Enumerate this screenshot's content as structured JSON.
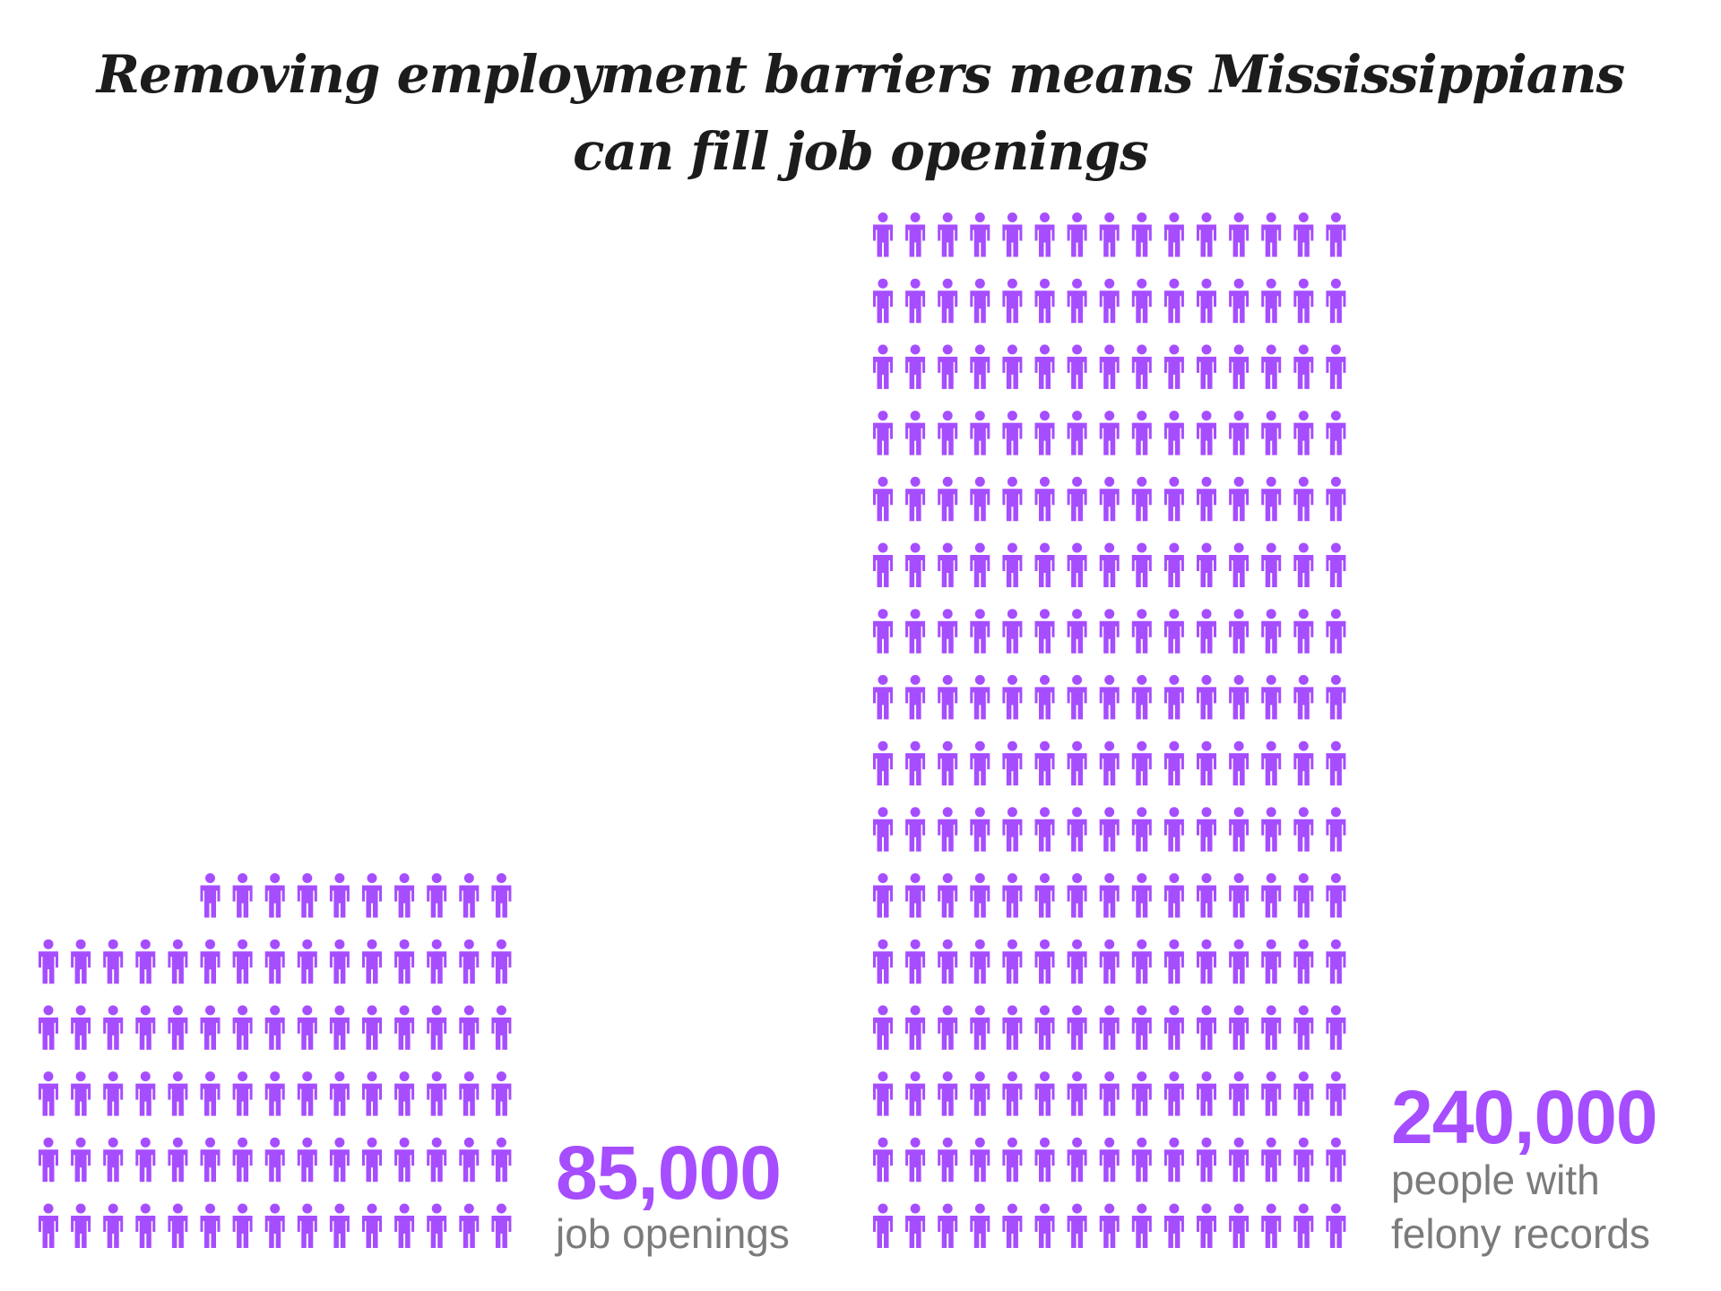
{
  "title": {
    "line1": "Removing employment barriers means Mississippians",
    "line2": "can fill job openings"
  },
  "colors": {
    "accent": "#a64dff",
    "title": "#1c1c1c",
    "label": "#7b7b7b"
  },
  "chart_data": {
    "type": "pictogram",
    "icon": "person-icon",
    "groups": [
      {
        "value": 85000,
        "value_text": "85,000",
        "label_lines": [
          "job openings"
        ],
        "icon_count": 85,
        "rows": [
          10,
          15,
          15,
          15,
          15,
          15
        ]
      },
      {
        "value": 240000,
        "value_text": "240,000",
        "label_lines": [
          "people with",
          "felony records"
        ],
        "icon_count": 240,
        "rows": [
          15,
          15,
          15,
          15,
          15,
          15,
          15,
          15,
          15,
          15,
          15,
          15,
          15,
          15,
          15,
          15
        ]
      }
    ]
  }
}
